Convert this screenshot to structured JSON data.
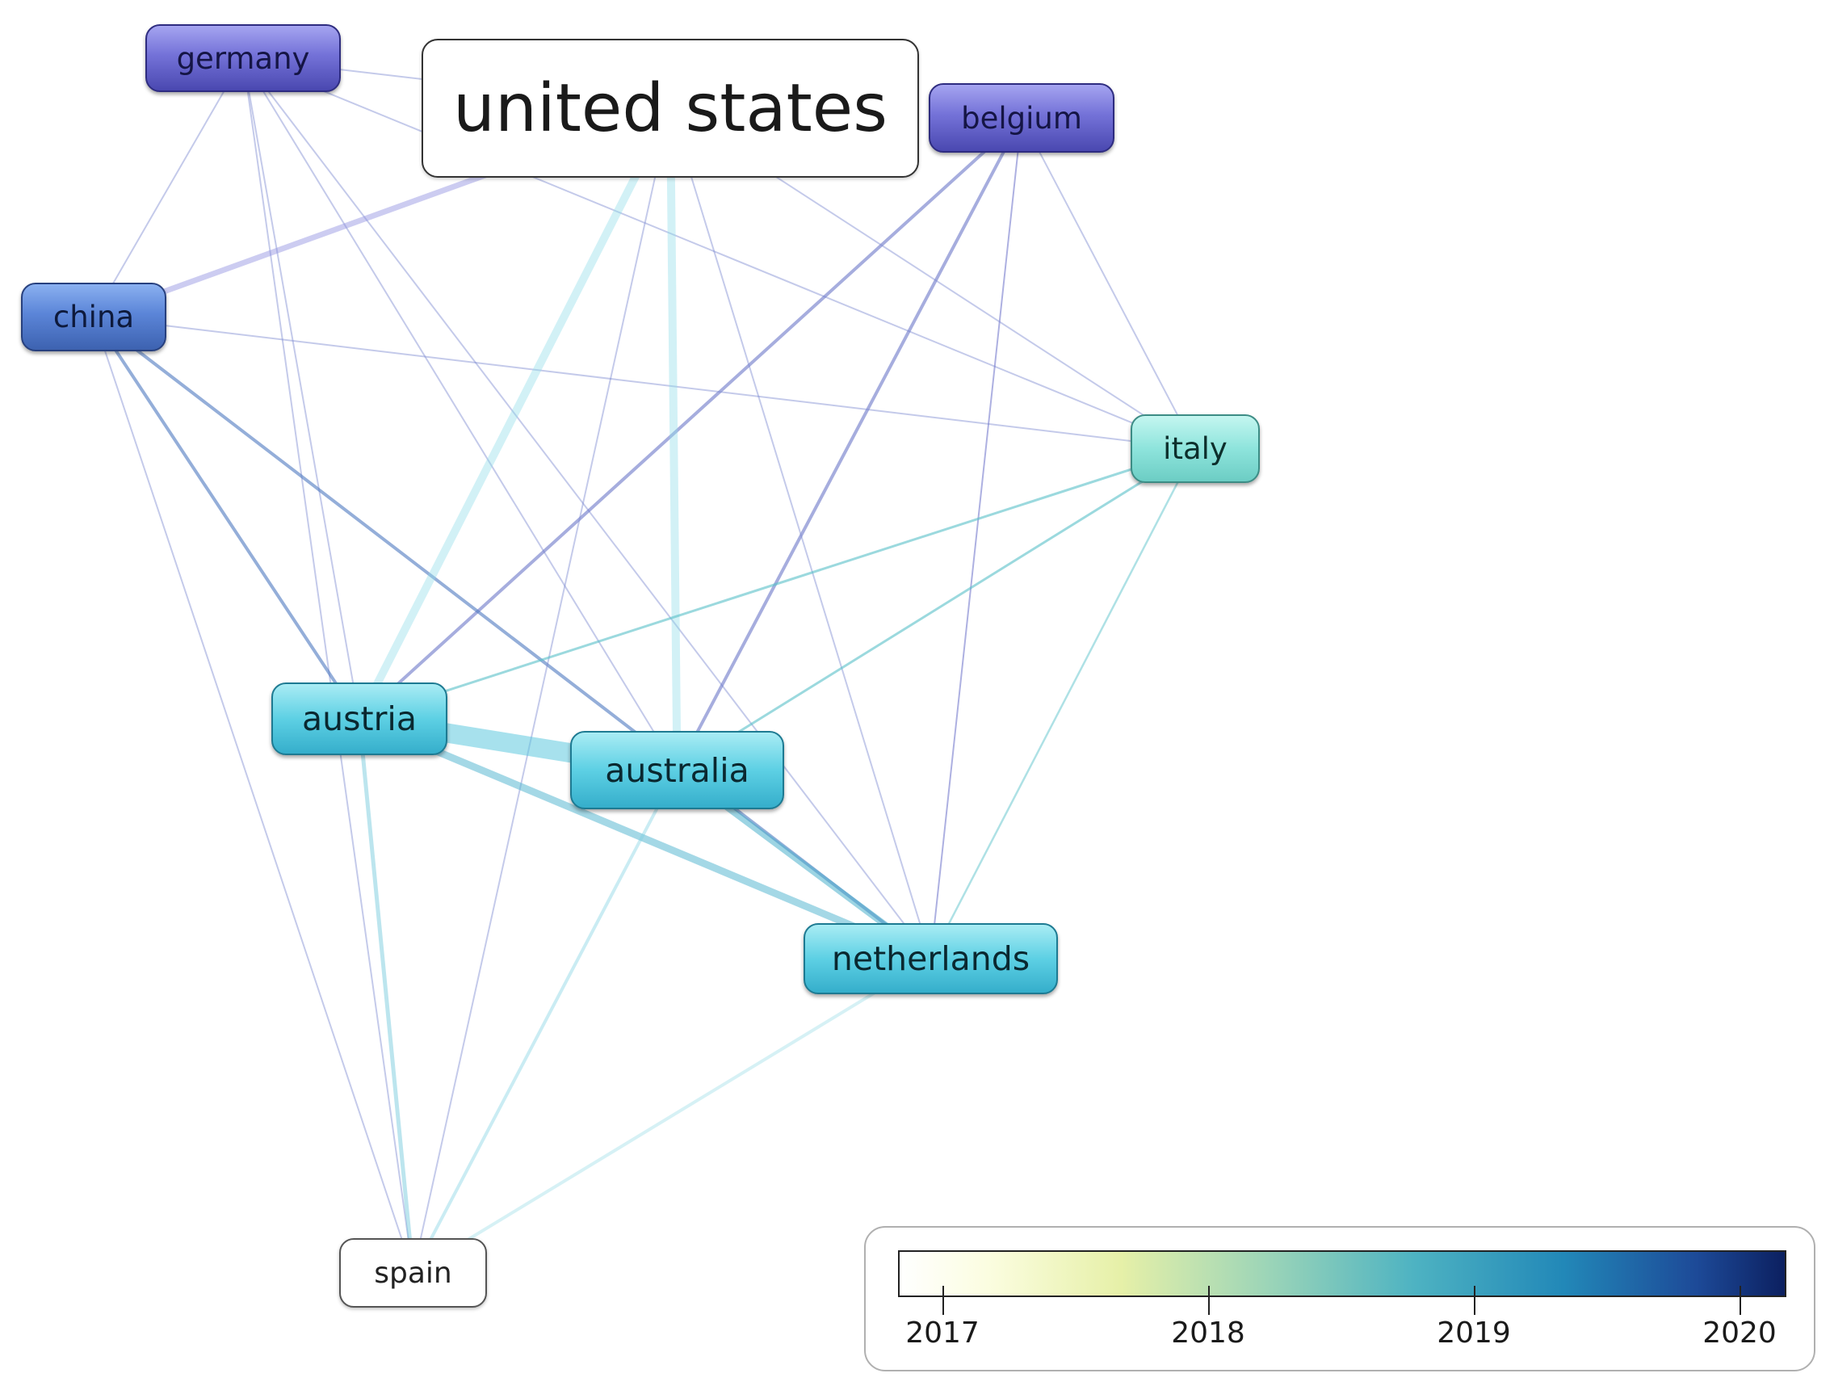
{
  "nodes": [
    {
      "id": "united-states",
      "label": "united states"
    },
    {
      "id": "germany",
      "label": "germany"
    },
    {
      "id": "belgium",
      "label": "belgium"
    },
    {
      "id": "china",
      "label": "china"
    },
    {
      "id": "italy",
      "label": "italy"
    },
    {
      "id": "austria",
      "label": "austria"
    },
    {
      "id": "australia",
      "label": "australia"
    },
    {
      "id": "netherlands",
      "label": "netherlands"
    },
    {
      "id": "spain",
      "label": "spain"
    }
  ],
  "edges": [
    {
      "from": "germany",
      "to": "china"
    },
    {
      "from": "germany",
      "to": "austria"
    },
    {
      "from": "germany",
      "to": "australia"
    },
    {
      "from": "germany",
      "to": "netherlands"
    },
    {
      "from": "germany",
      "to": "spain"
    },
    {
      "from": "germany",
      "to": "italy"
    },
    {
      "from": "germany",
      "to": "united-states"
    },
    {
      "from": "belgium",
      "to": "austria"
    },
    {
      "from": "belgium",
      "to": "australia"
    },
    {
      "from": "belgium",
      "to": "netherlands"
    },
    {
      "from": "belgium",
      "to": "italy"
    },
    {
      "from": "china",
      "to": "austria"
    },
    {
      "from": "china",
      "to": "netherlands"
    },
    {
      "from": "china",
      "to": "italy"
    },
    {
      "from": "china",
      "to": "united-states"
    },
    {
      "from": "china",
      "to": "spain"
    },
    {
      "from": "united-states",
      "to": "austria"
    },
    {
      "from": "united-states",
      "to": "australia"
    },
    {
      "from": "united-states",
      "to": "netherlands"
    },
    {
      "from": "united-states",
      "to": "italy"
    },
    {
      "from": "united-states",
      "to": "spain"
    },
    {
      "from": "italy",
      "to": "austria"
    },
    {
      "from": "italy",
      "to": "australia"
    },
    {
      "from": "italy",
      "to": "netherlands"
    },
    {
      "from": "austria",
      "to": "australia"
    },
    {
      "from": "austria",
      "to": "netherlands"
    },
    {
      "from": "austria",
      "to": "spain"
    },
    {
      "from": "australia",
      "to": "netherlands"
    },
    {
      "from": "australia",
      "to": "spain"
    },
    {
      "from": "netherlands",
      "to": "spain"
    }
  ],
  "legend": {
    "ticks": [
      "2017",
      "2018",
      "2019",
      "2020"
    ]
  },
  "colors": {
    "purple": "#6b69d2",
    "blue": "#4f78c8",
    "teal": "#8ee4dc",
    "cyan": "#4cc3dc",
    "scale_start": "#ffffff",
    "scale_mid": "#4eb3c2",
    "scale_end": "#0c2060"
  }
}
